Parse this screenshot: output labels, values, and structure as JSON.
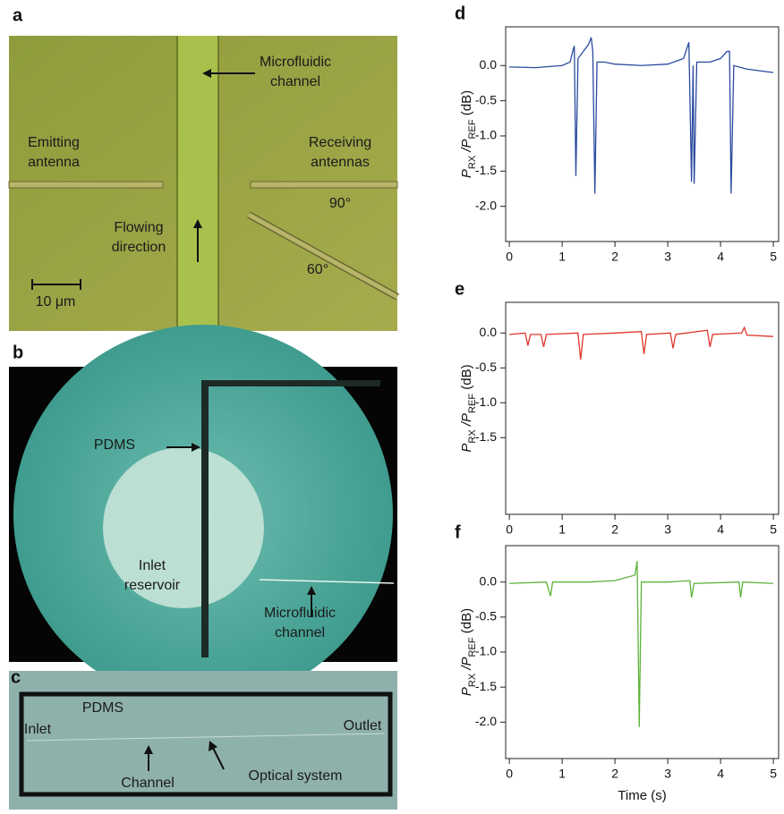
{
  "panels": [
    {
      "label": "a",
      "texts": [
        [
          "Microfluidic",
          "channel"
        ],
        [
          "Emitting",
          "antenna"
        ],
        [
          "Receiving",
          "antennas"
        ],
        [
          "90°"
        ],
        [
          "Flowing",
          "direction"
        ],
        [
          "60°"
        ],
        [
          "10 μm"
        ]
      ]
    },
    {
      "label": "b",
      "texts": [
        [
          "PDMS"
        ],
        [
          "Inlet",
          "reservoir"
        ],
        [
          "Microfluidic",
          "channel"
        ]
      ]
    },
    {
      "label": "c",
      "texts": [
        [
          "PDMS"
        ],
        [
          "Inlet"
        ],
        [
          "Outlet"
        ],
        [
          "Channel"
        ],
        [
          "Optical system"
        ]
      ]
    }
  ],
  "chart_data": [
    {
      "type": "line",
      "panel": "d",
      "ylabel_parts": [
        "P",
        "RX",
        " /P",
        "REF",
        " (dB)"
      ],
      "x": [
        0,
        0.5,
        1.0,
        1.15,
        1.2,
        1.23,
        1.26,
        1.3,
        1.4,
        1.5,
        1.55,
        1.58,
        1.62,
        1.66,
        1.8,
        2.0,
        2.5,
        3.0,
        3.3,
        3.4,
        3.45,
        3.48,
        3.5,
        3.55,
        3.8,
        4.0,
        4.12,
        4.17,
        4.2,
        4.25,
        4.5,
        5.0
      ],
      "series": [
        {
          "color": "#2a4a9e",
          "values": [
            -0.02,
            -0.03,
            0.0,
            0.05,
            0.2,
            0.28,
            -1.57,
            0.1,
            0.2,
            0.3,
            0.4,
            0.2,
            -1.82,
            0.05,
            0.05,
            0.02,
            0.0,
            0.02,
            0.1,
            0.33,
            -1.65,
            0.0,
            -1.68,
            0.05,
            0.05,
            0.1,
            0.2,
            0.2,
            -1.82,
            0.0,
            -0.05,
            -0.1
          ]
        }
      ],
      "xlim": [
        -0.07,
        5.1
      ],
      "ylim": [
        -2.5,
        0.55
      ],
      "xticks": [
        0,
        1,
        2,
        3,
        4,
        5
      ],
      "yticks": [
        {
          "value": 0,
          "label": "0.0"
        },
        -0.5,
        {
          "value": -1,
          "label": "-1.0"
        },
        -1.5,
        {
          "value": -2,
          "label": "-2.0"
        }
      ]
    },
    {
      "type": "line",
      "panel": "e",
      "ylabel_parts": [
        "P",
        "RX",
        " /P",
        "REF",
        " (dB)"
      ],
      "x": [
        0,
        0.3,
        0.35,
        0.4,
        0.6,
        0.65,
        0.7,
        1.3,
        1.35,
        1.4,
        2.0,
        2.5,
        2.55,
        2.6,
        3.05,
        3.1,
        3.15,
        3.75,
        3.8,
        3.85,
        4.4,
        4.45,
        4.5,
        5.0
      ],
      "series": [
        {
          "color": "#e0362b",
          "values": [
            -0.02,
            0.0,
            -0.18,
            -0.02,
            -0.02,
            -0.2,
            -0.02,
            0.0,
            -0.38,
            -0.02,
            0.0,
            0.02,
            -0.3,
            -0.02,
            0.0,
            -0.22,
            -0.02,
            0.04,
            -0.2,
            -0.02,
            0.0,
            0.08,
            -0.03,
            -0.05
          ]
        }
      ],
      "xlim": [
        -0.07,
        5.1
      ],
      "ylim": [
        -2.6,
        0.44
      ],
      "xticks": [
        0,
        1,
        2,
        3,
        4,
        5
      ],
      "yticks": [
        {
          "value": 0,
          "label": "0.0"
        },
        -0.5,
        {
          "value": -1,
          "label": "-1.0"
        },
        -1.5
      ]
    },
    {
      "type": "line",
      "panel": "f",
      "ylabel_parts": [
        "P",
        "RX",
        " /P",
        "REF",
        " (dB)"
      ],
      "xlabel": "Time (s)",
      "x": [
        0,
        0.7,
        0.78,
        0.82,
        1.5,
        2.0,
        2.38,
        2.42,
        2.46,
        2.5,
        3.0,
        3.42,
        3.45,
        3.5,
        4.35,
        4.38,
        4.42,
        5.0
      ],
      "series": [
        {
          "color": "#5db33a",
          "values": [
            -0.02,
            0.0,
            -0.2,
            0.0,
            0.0,
            0.02,
            0.1,
            0.3,
            -2.07,
            0.0,
            0.0,
            0.02,
            -0.22,
            -0.02,
            0.0,
            -0.22,
            0.0,
            -0.02
          ]
        }
      ],
      "xlim": [
        -0.07,
        5.1
      ],
      "ylim": [
        -2.52,
        0.52
      ],
      "xticks": [
        0,
        1,
        2,
        3,
        4,
        5
      ],
      "yticks": [
        {
          "value": 0,
          "label": "0.0"
        },
        -0.5,
        {
          "value": -1,
          "label": "-1.0"
        },
        -1.5,
        {
          "value": -2,
          "label": "-2.0"
        }
      ]
    }
  ]
}
